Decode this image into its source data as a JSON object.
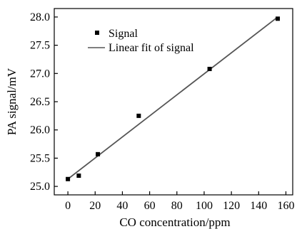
{
  "chart_data": {
    "type": "scatter",
    "xlabel": "CO concentration/ppm",
    "ylabel": "PA signal/mV",
    "xlim": [
      -10,
      165
    ],
    "ylim": [
      24.85,
      28.15
    ],
    "xticks": [
      0,
      20,
      40,
      60,
      80,
      100,
      120,
      140,
      160
    ],
    "yticks": [
      25.0,
      25.5,
      26.0,
      26.5,
      27.0,
      27.5,
      28.0
    ],
    "xtick_labels": [
      "0",
      "20",
      "40",
      "60",
      "80",
      "100",
      "120",
      "140",
      "160"
    ],
    "ytick_labels": [
      "25.0",
      "25.5",
      "26.0",
      "26.5",
      "27.0",
      "27.5",
      "28.0"
    ],
    "series": [
      {
        "name": "Signal",
        "kind": "scatter",
        "marker": "square",
        "color": "#000000",
        "x": [
          0,
          8,
          22,
          52,
          104,
          154
        ],
        "y": [
          25.13,
          25.19,
          25.57,
          26.25,
          27.08,
          27.97
        ]
      },
      {
        "name": "Linear fit of signal",
        "kind": "line",
        "color": "#555555",
        "x": [
          0,
          154
        ],
        "y": [
          25.13,
          28.0
        ]
      }
    ],
    "legend_position": "top-left",
    "grid": false
  }
}
